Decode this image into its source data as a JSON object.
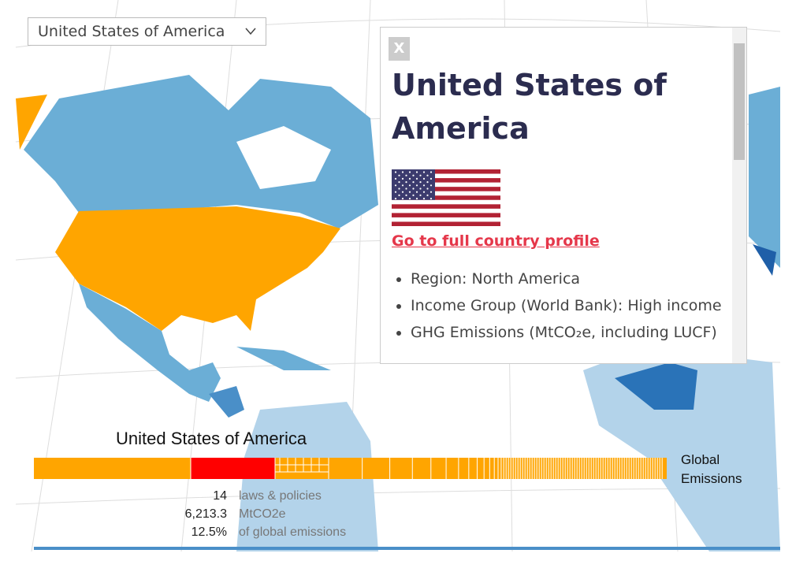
{
  "dropdown": {
    "selected": "United States of America"
  },
  "popup": {
    "close": "X",
    "title": "United States of America",
    "link": "Go to full country profile",
    "items": [
      "Region: North America",
      "Income Group (World Bank): High income",
      "GHG Emissions (MtCO₂e, including LUCF)"
    ]
  },
  "emissions_bar": {
    "country": "United States of America",
    "label": "Global Emissions",
    "stats": [
      {
        "value": "14",
        "unit": "laws & policies"
      },
      {
        "value": "6,213.3",
        "unit": "MtCO2e"
      },
      {
        "value": "12.5%",
        "unit": "of global emissions"
      }
    ]
  }
}
